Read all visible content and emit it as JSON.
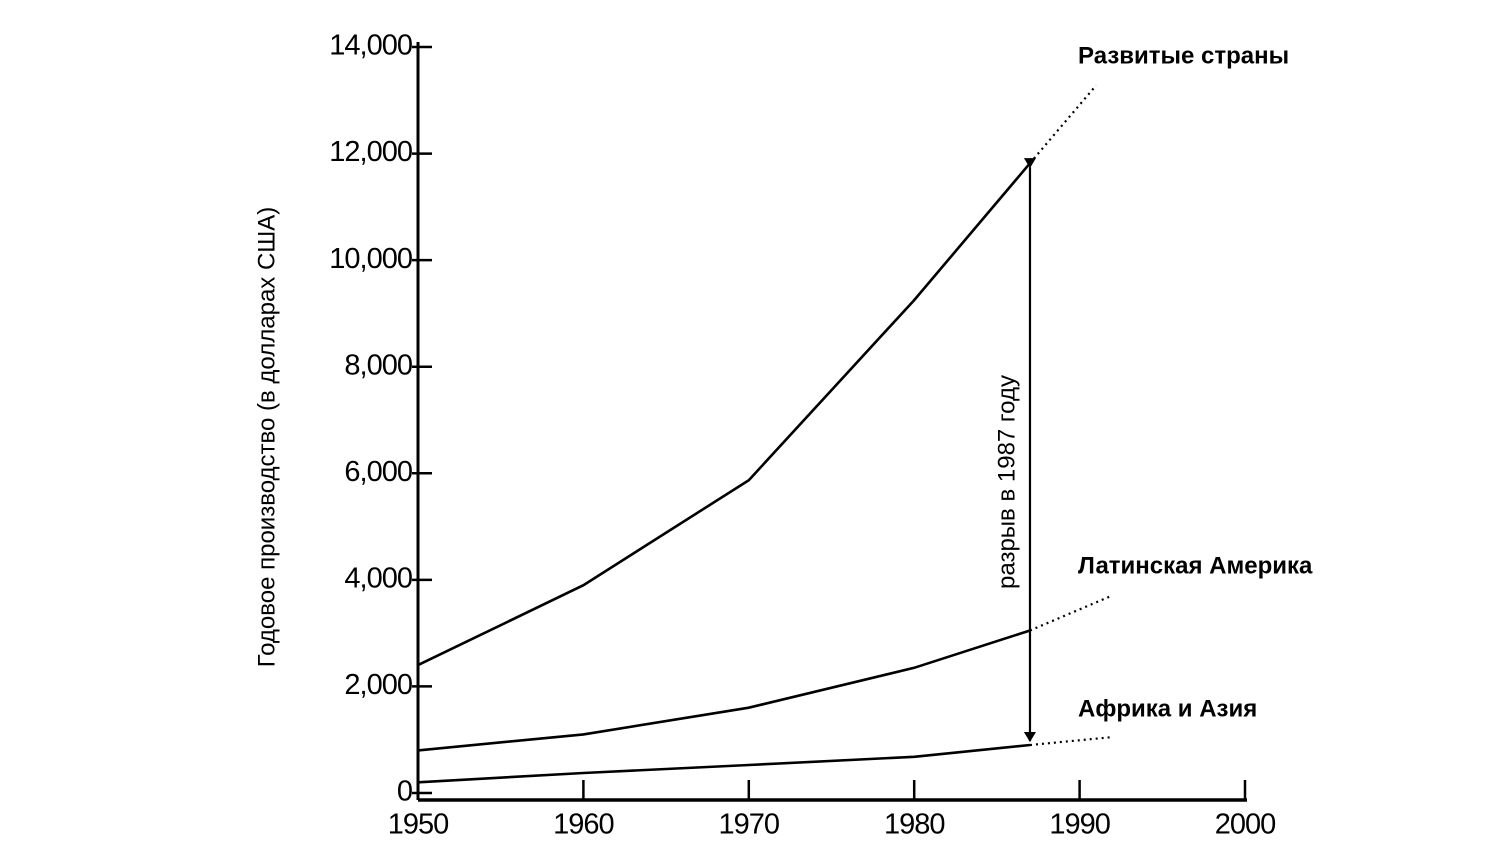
{
  "chart_data": {
    "type": "line",
    "y_label": "Годовое производство (в долларах США)",
    "annotation": "разрыв в 1987 году",
    "x": [
      1950,
      1960,
      1970,
      1980,
      1987
    ],
    "xlim": [
      1950,
      2000
    ],
    "xticks": [
      1950,
      1960,
      1970,
      1980,
      1990,
      2000
    ],
    "ylim": [
      0,
      14000
    ],
    "yticks": [
      0,
      {
        "value": 2000,
        "label": "2,000"
      },
      {
        "value": 4000,
        "label": "4,000"
      },
      {
        "value": 6000,
        "label": "6,000"
      },
      {
        "value": 8000,
        "label": "8,000"
      },
      {
        "value": 10000,
        "label": "10,000"
      },
      {
        "value": 12000,
        "label": "12,000"
      },
      {
        "value": 14000,
        "label": "14,000"
      }
    ],
    "grid": false,
    "series": [
      {
        "name": "Развитые страны",
        "color": "#000000",
        "values": [
          2400,
          3900,
          5870,
          9250,
          11820
        ],
        "projection": {
          "x": 1991,
          "value": 13280
        }
      },
      {
        "name": "Латинская Америка",
        "color": "#000000",
        "values": [
          800,
          1100,
          1600,
          2350,
          3050
        ],
        "projection": {
          "x": 1992,
          "value": 3710
        }
      },
      {
        "name": "Африка и Азия",
        "color": "#000000",
        "values": [
          200,
          375,
          525,
          680,
          900
        ],
        "projection": {
          "x": 1992,
          "value": 1050
        }
      }
    ]
  }
}
